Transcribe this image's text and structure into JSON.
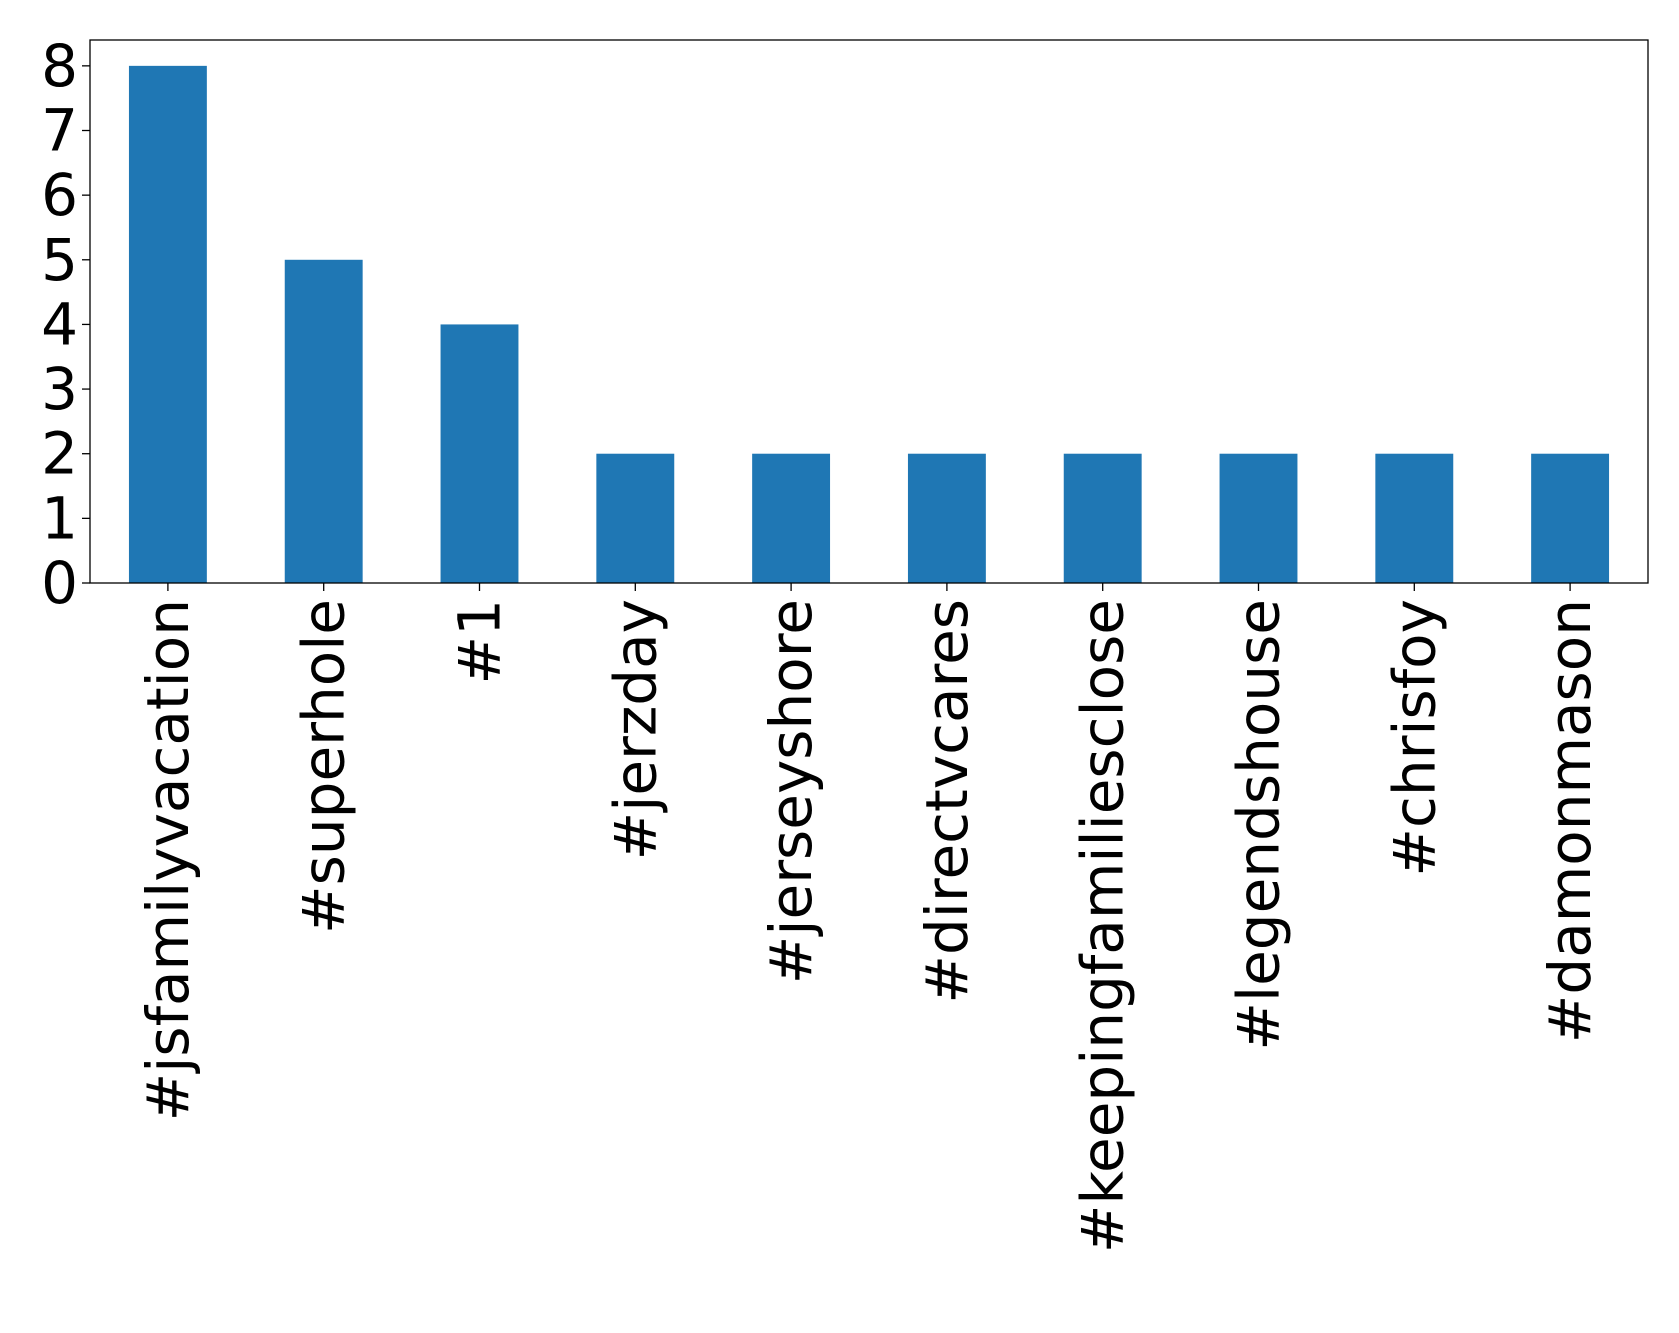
{
  "chart_data": {
    "type": "bar",
    "categories": [
      "#jsfamilyvacation",
      "#superhole",
      "#1",
      "#jerzday",
      "#jerseyshore",
      "#directvcares",
      "#keepingfamiliesclose",
      "#legendshouse",
      "#chrisfoy",
      "#damonmason"
    ],
    "values": [
      8,
      5,
      4,
      2,
      2,
      2,
      2,
      2,
      2,
      2
    ],
    "ylim": [
      0,
      8.4
    ],
    "yticks": [
      0,
      1,
      2,
      3,
      4,
      5,
      6,
      7,
      8
    ],
    "bar_color": "#1f77b4",
    "grid": false,
    "legend": "none",
    "title": "",
    "xlabel": "",
    "ylabel": ""
  }
}
